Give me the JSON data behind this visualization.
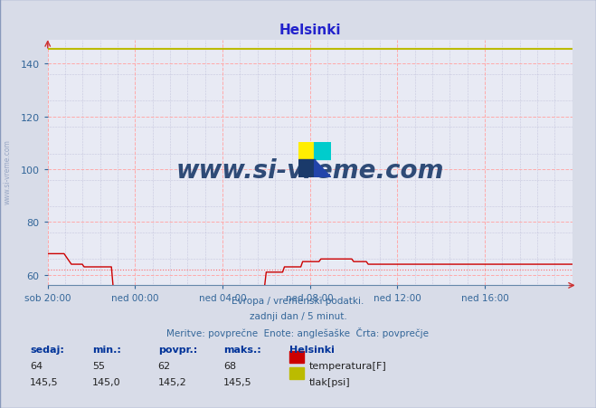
{
  "title": "Helsinki",
  "title_color": "#2222cc",
  "bg_color": "#d8dce8",
  "plot_bg_color": "#e8eaf4",
  "xlabel_color": "#336699",
  "ylabel_color": "#336699",
  "x_tick_labels": [
    "sob 20:00",
    "ned 00:00",
    "ned 04:00",
    "ned 08:00",
    "ned 12:00",
    "ned 16:00"
  ],
  "ylim": [
    56,
    149
  ],
  "yticks": [
    60,
    80,
    100,
    120,
    140
  ],
  "avg_temp": 62,
  "temp_color": "#cc0000",
  "pressure_color": "#bbbb00",
  "avg_line_color": "#ff6666",
  "watermark": "www.si-vreme.com",
  "watermark_color": "#1a3a6a",
  "side_watermark": "www.si-vreme.com",
  "side_watermark_color": "#8899bb",
  "footer_line1": "Evropa / vremenski podatki.",
  "footer_line2": "zadnji dan / 5 minut.",
  "footer_line3": "Meritve: povprečne  Enote: anglešaške  Črta: povprečje",
  "footer_color": "#336699",
  "legend_title": "Helsinki",
  "legend_labels": [
    "temperatura[F]",
    "tlak[psi]"
  ],
  "legend_colors": [
    "#cc0000",
    "#bbbb00"
  ],
  "stats_headers": [
    "sedaj:",
    "min.:",
    "povpr.:",
    "maks.:"
  ],
  "stats_temp": [
    "64",
    "55",
    "62",
    "68"
  ],
  "stats_pressure": [
    "145,5",
    "145,0",
    "145,2",
    "145,5"
  ],
  "n_points": 289,
  "temp_data_raw": [
    68,
    68,
    68,
    68,
    68,
    68,
    68,
    68,
    68,
    68,
    67,
    66,
    65,
    64,
    64,
    64,
    64,
    64,
    64,
    64,
    63,
    63,
    63,
    63,
    63,
    63,
    63,
    63,
    63,
    63,
    63,
    63,
    63,
    63,
    63,
    63,
    55,
    55,
    55,
    55,
    55,
    55,
    55,
    55,
    55,
    55,
    55,
    55,
    55,
    55,
    55,
    55,
    55,
    55,
    55,
    55,
    55,
    55,
    55,
    55,
    55,
    55,
    55,
    55,
    55,
    55,
    55,
    55,
    55,
    55,
    55,
    55,
    55,
    55,
    55,
    55,
    55,
    55,
    55,
    55,
    55,
    55,
    55,
    55,
    55,
    55,
    55,
    55,
    55,
    55,
    55,
    55,
    55,
    55,
    55,
    55,
    55,
    55,
    55,
    55,
    55,
    55,
    55,
    55,
    55,
    55,
    55,
    55,
    55,
    55,
    55,
    55,
    55,
    55,
    55,
    55,
    55,
    55,
    55,
    55,
    61,
    61,
    61,
    61,
    61,
    61,
    61,
    61,
    61,
    61,
    63,
    63,
    63,
    63,
    63,
    63,
    63,
    63,
    63,
    63,
    65,
    65,
    65,
    65,
    65,
    65,
    65,
    65,
    65,
    65,
    66,
    66,
    66,
    66,
    66,
    66,
    66,
    66,
    66,
    66,
    66,
    66,
    66,
    66,
    66,
    66,
    66,
    66,
    65,
    65,
    65,
    65,
    65,
    65,
    65,
    65,
    64,
    64,
    64,
    64,
    64,
    64,
    64,
    64,
    64,
    64,
    64,
    64,
    64,
    64,
    64,
    64,
    64,
    64,
    64,
    64,
    64,
    64,
    64,
    64,
    64,
    64,
    64,
    64,
    64,
    64,
    64,
    64,
    64,
    64,
    64,
    64,
    64,
    64,
    64,
    64,
    64,
    64,
    64,
    64,
    64,
    64,
    64,
    64,
    64,
    64,
    64,
    64,
    64,
    64,
    64,
    64,
    64,
    64,
    64,
    64,
    64,
    64,
    64,
    64,
    64,
    64,
    64,
    64,
    64,
    64,
    64,
    64,
    64,
    64,
    64,
    64,
    64,
    64,
    64,
    64,
    64,
    64,
    64,
    64,
    64,
    64,
    64,
    64,
    64,
    64,
    64,
    64,
    64,
    64,
    64,
    64,
    64,
    64,
    64,
    64,
    64,
    64,
    64,
    64,
    64,
    64,
    64,
    64,
    64,
    64,
    64,
    64,
    64
  ],
  "pressure_value": 145.5
}
